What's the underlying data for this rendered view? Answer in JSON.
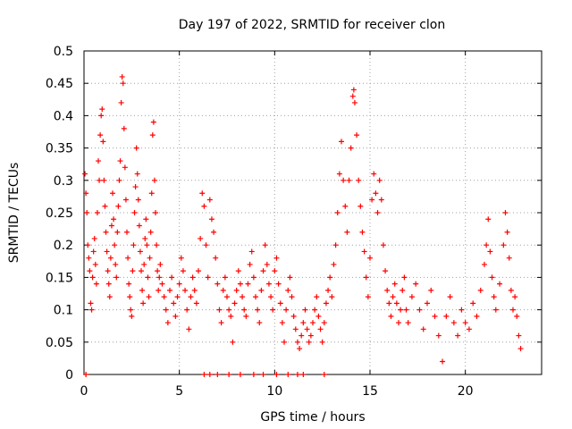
{
  "chart_data": {
    "type": "scatter",
    "title": "Day 197 of 2022, SRMTID for receiver clon",
    "xlabel": "GPS time / hours",
    "ylabel": "SRMTID / TECUs",
    "xlim": [
      0,
      24
    ],
    "ylim": [
      0,
      0.5
    ],
    "x_ticks": [
      0,
      5,
      10,
      15,
      20
    ],
    "x_tick_labels": [
      "0",
      "5",
      "10",
      "15",
      "20"
    ],
    "y_ticks": [
      0,
      0.05,
      0.1,
      0.15,
      0.2,
      0.25,
      0.3,
      0.35,
      0.4,
      0.45,
      0.5
    ],
    "y_tick_labels": [
      "0",
      "0.05",
      "0.1",
      "0.15",
      "0.2",
      "0.25",
      "0.3",
      "0.35",
      "0.4",
      "0.45",
      "0.5"
    ],
    "grid": true,
    "marker": "+",
    "color": "#ff0000",
    "series": [
      {
        "name": "SRMTID",
        "points": [
          [
            0.05,
            0.31
          ],
          [
            0.1,
            0.28
          ],
          [
            0.15,
            0.25
          ],
          [
            0.2,
            0.2
          ],
          [
            0.25,
            0.18
          ],
          [
            0.3,
            0.16
          ],
          [
            0.35,
            0.11
          ],
          [
            0.4,
            0.1
          ],
          [
            0.45,
            0.15
          ],
          [
            0.5,
            0.19
          ],
          [
            0.55,
            0.21
          ],
          [
            0.6,
            0.17
          ],
          [
            0.65,
            0.14
          ],
          [
            0.7,
            0.25
          ],
          [
            0.75,
            0.33
          ],
          [
            0.8,
            0.3
          ],
          [
            0.85,
            0.37
          ],
          [
            0.9,
            0.4
          ],
          [
            0.95,
            0.41
          ],
          [
            1.0,
            0.36
          ],
          [
            1.05,
            0.3
          ],
          [
            1.1,
            0.26
          ],
          [
            1.15,
            0.22
          ],
          [
            1.2,
            0.19
          ],
          [
            1.25,
            0.16
          ],
          [
            1.3,
            0.14
          ],
          [
            1.35,
            0.12
          ],
          [
            1.4,
            0.18
          ],
          [
            1.45,
            0.23
          ],
          [
            1.5,
            0.28
          ],
          [
            1.55,
            0.24
          ],
          [
            1.6,
            0.2
          ],
          [
            1.65,
            0.17
          ],
          [
            1.7,
            0.15
          ],
          [
            1.75,
            0.22
          ],
          [
            1.8,
            0.26
          ],
          [
            1.85,
            0.3
          ],
          [
            1.9,
            0.33
          ],
          [
            1.95,
            0.42
          ],
          [
            2.0,
            0.46
          ],
          [
            2.05,
            0.45
          ],
          [
            2.1,
            0.38
          ],
          [
            2.15,
            0.32
          ],
          [
            2.2,
            0.27
          ],
          [
            2.25,
            0.22
          ],
          [
            2.3,
            0.18
          ],
          [
            2.35,
            0.14
          ],
          [
            2.4,
            0.12
          ],
          [
            2.45,
            0.1
          ],
          [
            2.5,
            0.09
          ],
          [
            2.55,
            0.16
          ],
          [
            2.6,
            0.2
          ],
          [
            2.65,
            0.25
          ],
          [
            2.7,
            0.29
          ],
          [
            2.75,
            0.35
          ],
          [
            2.8,
            0.31
          ],
          [
            2.85,
            0.27
          ],
          [
            2.9,
            0.23
          ],
          [
            2.95,
            0.19
          ],
          [
            3.0,
            0.16
          ],
          [
            3.05,
            0.13
          ],
          [
            3.1,
            0.11
          ],
          [
            3.15,
            0.17
          ],
          [
            3.2,
            0.21
          ],
          [
            3.25,
            0.24
          ],
          [
            3.3,
            0.2
          ],
          [
            3.35,
            0.15
          ],
          [
            3.4,
            0.12
          ],
          [
            3.45,
            0.18
          ],
          [
            3.5,
            0.22
          ],
          [
            3.55,
            0.28
          ],
          [
            3.6,
            0.37
          ],
          [
            3.65,
            0.39
          ],
          [
            3.7,
            0.3
          ],
          [
            3.75,
            0.25
          ],
          [
            3.8,
            0.2
          ],
          [
            3.85,
            0.16
          ],
          [
            3.9,
            0.13
          ],
          [
            3.95,
            0.15
          ],
          [
            4.0,
            0.17
          ],
          [
            4.1,
            0.14
          ],
          [
            4.2,
            0.12
          ],
          [
            4.3,
            0.1
          ],
          [
            4.4,
            0.08
          ],
          [
            4.5,
            0.13
          ],
          [
            4.6,
            0.15
          ],
          [
            4.7,
            0.11
          ],
          [
            4.8,
            0.09
          ],
          [
            4.9,
            0.12
          ],
          [
            5.0,
            0.14
          ],
          [
            5.1,
            0.18
          ],
          [
            5.2,
            0.16
          ],
          [
            5.3,
            0.13
          ],
          [
            5.4,
            0.1
          ],
          [
            5.5,
            0.07
          ],
          [
            5.6,
            0.12
          ],
          [
            5.7,
            0.15
          ],
          [
            5.8,
            0.13
          ],
          [
            5.9,
            0.11
          ],
          [
            6.0,
            0.16
          ],
          [
            6.1,
            0.21
          ],
          [
            6.2,
            0.28
          ],
          [
            6.3,
            0.26
          ],
          [
            6.4,
            0.2
          ],
          [
            6.5,
            0.15
          ],
          [
            6.6,
            0.27
          ],
          [
            6.7,
            0.24
          ],
          [
            6.8,
            0.22
          ],
          [
            6.9,
            0.18
          ],
          [
            7.0,
            0.14
          ],
          [
            7.1,
            0.1
          ],
          [
            7.2,
            0.08
          ],
          [
            7.3,
            0.13
          ],
          [
            7.4,
            0.15
          ],
          [
            7.5,
            0.12
          ],
          [
            7.6,
            0.1
          ],
          [
            7.7,
            0.09
          ],
          [
            7.8,
            0.05
          ],
          [
            7.9,
            0.11
          ],
          [
            8.0,
            0.13
          ],
          [
            8.1,
            0.16
          ],
          [
            8.2,
            0.14
          ],
          [
            8.3,
            0.12
          ],
          [
            8.4,
            0.1
          ],
          [
            8.5,
            0.09
          ],
          [
            8.6,
            0.14
          ],
          [
            8.7,
            0.17
          ],
          [
            8.8,
            0.19
          ],
          [
            8.9,
            0.15
          ],
          [
            9.0,
            0.12
          ],
          [
            9.1,
            0.1
          ],
          [
            9.2,
            0.08
          ],
          [
            9.3,
            0.13
          ],
          [
            9.4,
            0.16
          ],
          [
            9.5,
            0.2
          ],
          [
            9.6,
            0.17
          ],
          [
            9.7,
            0.14
          ],
          [
            9.8,
            0.12
          ],
          [
            9.9,
            0.1
          ],
          [
            10.0,
            0.16
          ],
          [
            10.1,
            0.18
          ],
          [
            10.2,
            0.14
          ],
          [
            10.3,
            0.11
          ],
          [
            10.4,
            0.08
          ],
          [
            10.5,
            0.05
          ],
          [
            10.6,
            0.1
          ],
          [
            10.7,
            0.13
          ],
          [
            10.8,
            0.15
          ],
          [
            10.9,
            0.12
          ],
          [
            11.0,
            0.09
          ],
          [
            11.1,
            0.07
          ],
          [
            11.2,
            0.05
          ],
          [
            11.3,
            0.04
          ],
          [
            11.4,
            0.06
          ],
          [
            11.5,
            0.08
          ],
          [
            11.6,
            0.1
          ],
          [
            11.7,
            0.07
          ],
          [
            11.8,
            0.05
          ],
          [
            11.9,
            0.06
          ],
          [
            12.0,
            0.08
          ],
          [
            12.1,
            0.1
          ],
          [
            12.2,
            0.12
          ],
          [
            12.3,
            0.09
          ],
          [
            12.4,
            0.07
          ],
          [
            12.5,
            0.05
          ],
          [
            12.6,
            0.08
          ],
          [
            12.7,
            0.11
          ],
          [
            12.8,
            0.13
          ],
          [
            12.9,
            0.15
          ],
          [
            13.0,
            0.12
          ],
          [
            13.1,
            0.17
          ],
          [
            13.2,
            0.2
          ],
          [
            13.3,
            0.25
          ],
          [
            13.4,
            0.31
          ],
          [
            13.5,
            0.36
          ],
          [
            13.6,
            0.3
          ],
          [
            13.7,
            0.26
          ],
          [
            13.8,
            0.22
          ],
          [
            13.9,
            0.3
          ],
          [
            14.0,
            0.35
          ],
          [
            14.1,
            0.43
          ],
          [
            14.15,
            0.44
          ],
          [
            14.2,
            0.42
          ],
          [
            14.3,
            0.37
          ],
          [
            14.4,
            0.3
          ],
          [
            14.5,
            0.26
          ],
          [
            14.6,
            0.22
          ],
          [
            14.7,
            0.19
          ],
          [
            14.8,
            0.15
          ],
          [
            14.9,
            0.12
          ],
          [
            15.0,
            0.18
          ],
          [
            15.1,
            0.27
          ],
          [
            15.2,
            0.31
          ],
          [
            15.3,
            0.28
          ],
          [
            15.4,
            0.25
          ],
          [
            15.5,
            0.3
          ],
          [
            15.6,
            0.27
          ],
          [
            15.7,
            0.2
          ],
          [
            15.8,
            0.16
          ],
          [
            15.9,
            0.13
          ],
          [
            16.0,
            0.11
          ],
          [
            16.1,
            0.09
          ],
          [
            16.2,
            0.12
          ],
          [
            16.3,
            0.14
          ],
          [
            16.4,
            0.11
          ],
          [
            16.5,
            0.08
          ],
          [
            16.6,
            0.1
          ],
          [
            16.7,
            0.13
          ],
          [
            16.8,
            0.15
          ],
          [
            16.9,
            0.1
          ],
          [
            17.0,
            0.08
          ],
          [
            17.2,
            0.12
          ],
          [
            17.4,
            0.14
          ],
          [
            17.6,
            0.1
          ],
          [
            17.8,
            0.07
          ],
          [
            18.0,
            0.11
          ],
          [
            18.2,
            0.13
          ],
          [
            18.4,
            0.09
          ],
          [
            18.6,
            0.06
          ],
          [
            18.8,
            0.02
          ],
          [
            19.0,
            0.09
          ],
          [
            19.2,
            0.12
          ],
          [
            19.4,
            0.08
          ],
          [
            19.6,
            0.06
          ],
          [
            19.8,
            0.1
          ],
          [
            20.0,
            0.08
          ],
          [
            20.2,
            0.07
          ],
          [
            20.4,
            0.11
          ],
          [
            20.6,
            0.09
          ],
          [
            20.8,
            0.13
          ],
          [
            21.0,
            0.17
          ],
          [
            21.1,
            0.2
          ],
          [
            21.2,
            0.24
          ],
          [
            21.3,
            0.19
          ],
          [
            21.4,
            0.15
          ],
          [
            21.5,
            0.12
          ],
          [
            21.6,
            0.1
          ],
          [
            21.8,
            0.14
          ],
          [
            22.0,
            0.2
          ],
          [
            22.1,
            0.25
          ],
          [
            22.2,
            0.22
          ],
          [
            22.3,
            0.18
          ],
          [
            22.4,
            0.13
          ],
          [
            22.5,
            0.1
          ],
          [
            22.6,
            0.12
          ],
          [
            22.7,
            0.09
          ],
          [
            22.8,
            0.06
          ],
          [
            22.9,
            0.04
          ]
        ]
      }
    ],
    "zero_points_x": [
      0.1,
      6.3,
      6.6,
      7.0,
      7.6,
      8.2,
      8.9,
      9.4,
      10.1,
      10.7,
      11.2,
      11.5,
      12.6
    ]
  }
}
